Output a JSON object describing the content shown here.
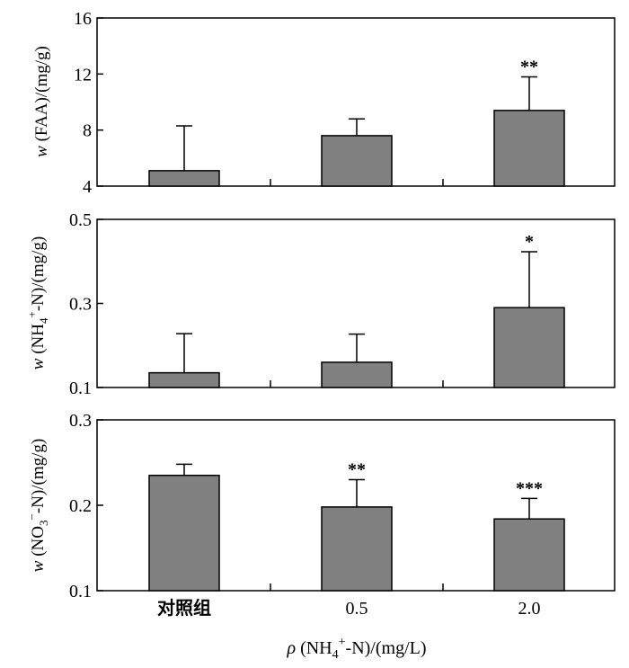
{
  "chart_data": [
    {
      "type": "bar",
      "categories": [
        "对照组",
        "0.5",
        "2.0"
      ],
      "values": [
        5.1,
        7.6,
        9.4
      ],
      "errors": [
        3.2,
        1.2,
        2.4
      ],
      "significance": [
        "",
        "",
        "**"
      ],
      "ylabel": {
        "italic": "w",
        "main": " (FAA)/(mg/g)"
      },
      "ylim": [
        4,
        16
      ],
      "yticks": [
        "4",
        "8",
        "12",
        "16"
      ],
      "ytick_values": [
        4,
        8,
        12,
        16
      ]
    },
    {
      "type": "bar",
      "categories": [
        "对照组",
        "0.5",
        "2.0"
      ],
      "values": [
        0.135,
        0.16,
        0.29
      ],
      "errors": [
        0.093,
        0.067,
        0.133
      ],
      "significance": [
        "",
        "",
        "*"
      ],
      "ylabel": {
        "italic": "w",
        "pre": " (NH",
        "sub": "4",
        "sup": "+",
        "post": "-N)/(mg/g)"
      },
      "ylim": [
        0.1,
        0.5
      ],
      "yticks": [
        "0.1",
        "0.3",
        "0.5"
      ],
      "ytick_values": [
        0.1,
        0.3,
        0.5
      ]
    },
    {
      "type": "bar",
      "categories": [
        "对照组",
        "0.5",
        "2.0"
      ],
      "values": [
        0.235,
        0.198,
        0.184
      ],
      "errors": [
        0.013,
        0.032,
        0.024
      ],
      "significance": [
        "",
        "**",
        "***"
      ],
      "ylabel": {
        "italic": "w",
        "pre": " (NO",
        "sub": "3",
        "sup": "−",
        "post": "-N)/(mg/g)"
      },
      "ylim": [
        0.1,
        0.3
      ],
      "yticks": [
        "0.1",
        "0.2",
        "0.3"
      ],
      "ytick_values": [
        0.1,
        0.2,
        0.3
      ]
    }
  ],
  "x_axis": {
    "tick_labels": [
      "对照组",
      "0.5",
      "2.0"
    ],
    "label": {
      "italic": "ρ",
      "pre": " (NH",
      "sub": "4",
      "sup": "+",
      "post": "-N)/(mg/L)"
    }
  },
  "colors": {
    "bar_fill": "#808080",
    "axis": "#000000"
  }
}
